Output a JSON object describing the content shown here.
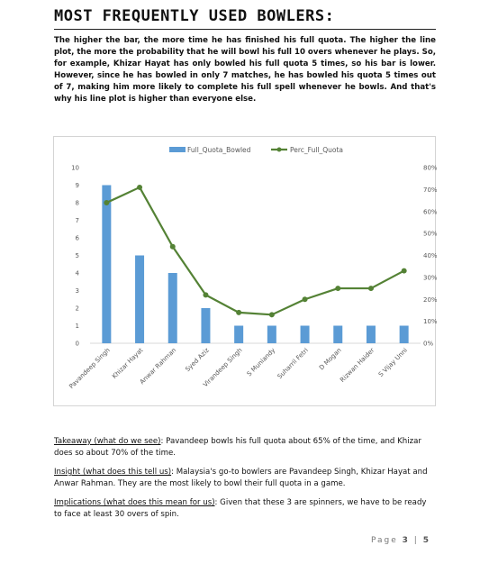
{
  "title": "MOST FREQUENTLY USED BOWLERS:",
  "intro": "The higher the bar, the more time he has finished his full quota. The higher the line plot, the more the probability that he will bowl his full 10 overs whenever he plays. So, for example, Khizar Hayat has only bowled his full quota 5 times, so his bar is lower. However, since he has bowled in only 7 matches, he has bowled his quota 5 times out of 7, making him more likely to complete his full spell whenever he bowls. And that's why his line plot is higher than everyone else.",
  "chart_data": {
    "type": "bar",
    "categories": [
      "Pavandeep Singh",
      "Khizar Hayat",
      "Anwar Rahman",
      "Syed Aziz",
      "Virandeep Singh",
      "S Muniandy",
      "Suharril Fetri",
      "D Mogan",
      "Rizwan Haider",
      "S Vijay Unni"
    ],
    "series": [
      {
        "name": "Full_Quota_Bowled",
        "chart_type": "bar",
        "axis": "left",
        "color": "#5b9bd5",
        "values": [
          9,
          5,
          4,
          2,
          1,
          1,
          1,
          1,
          1,
          1
        ]
      },
      {
        "name": "Perc_Full_Quota",
        "chart_type": "line",
        "axis": "right",
        "color": "#548235",
        "values": [
          64,
          71,
          44,
          22,
          14,
          13,
          20,
          25,
          25,
          33
        ]
      }
    ],
    "yticks_left": [
      "0",
      "1",
      "2",
      "3",
      "4",
      "5",
      "6",
      "7",
      "8",
      "9",
      "10"
    ],
    "yticks_right": [
      "0%",
      "10%",
      "20%",
      "30%",
      "40%",
      "50%",
      "60%",
      "70%",
      "80%"
    ],
    "ylim_left": [
      0,
      10
    ],
    "ylim_right": [
      0,
      80
    ],
    "legend_position": "top",
    "grid": false
  },
  "takeaway": {
    "lead": "Takeaway (what do we see)",
    "text": ": Pavandeep bowls his full quota about 65% of the time, and Khizar does so about 70% of the time."
  },
  "insight": {
    "lead": "Insight (what does this tell us)",
    "text": ": Malaysia's go-to bowlers are Pavandeep Singh, Khizar Hayat and Anwar Rahman. They are the most likely to bowl their full quota in a game."
  },
  "implications": {
    "lead": "Implications (what does this mean for us)",
    "text": ": Given that these 3 are spinners, we have to be ready to face at least 30 overs of spin."
  },
  "page": {
    "label": "Page ",
    "number": "3",
    "separator": " | ",
    "total": "5"
  }
}
